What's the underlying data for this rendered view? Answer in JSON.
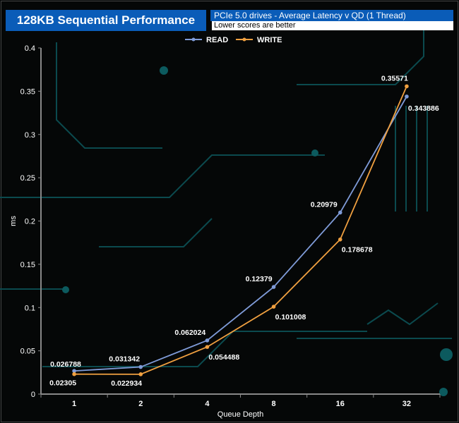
{
  "title": "128KB Sequential Performance",
  "subtitle": "PCIe 5.0 drives - Average Latency v QD (1 Thread)",
  "note": "Lower scores are better",
  "chart_data": {
    "type": "line",
    "xlabel": "Queue Depth",
    "ylabel": "ms",
    "categories": [
      "1",
      "2",
      "4",
      "8",
      "16",
      "32"
    ],
    "ylim": [
      0,
      0.4
    ],
    "yticks": [
      "0",
      "0.05",
      "0.1",
      "0.15",
      "0.2",
      "0.25",
      "0.3",
      "0.35",
      "0.4"
    ],
    "legend": "top-center",
    "series": [
      {
        "name": "READ",
        "color": "#7f9bd8",
        "values": [
          0.026788,
          0.031342,
          0.062024,
          0.12379,
          0.20979,
          0.343886
        ],
        "labels": [
          "0.026788",
          "0.031342",
          "0.062024",
          "0.12379",
          "0.20979",
          "0.343886"
        ]
      },
      {
        "name": "WRITE",
        "color": "#f0a040",
        "values": [
          0.02305,
          0.022934,
          0.054488,
          0.101008,
          0.178678,
          0.35571
        ],
        "labels": [
          "0.02305",
          "0.022934",
          "0.054488",
          "0.101008",
          "0.178678",
          "0.35571"
        ]
      }
    ]
  }
}
